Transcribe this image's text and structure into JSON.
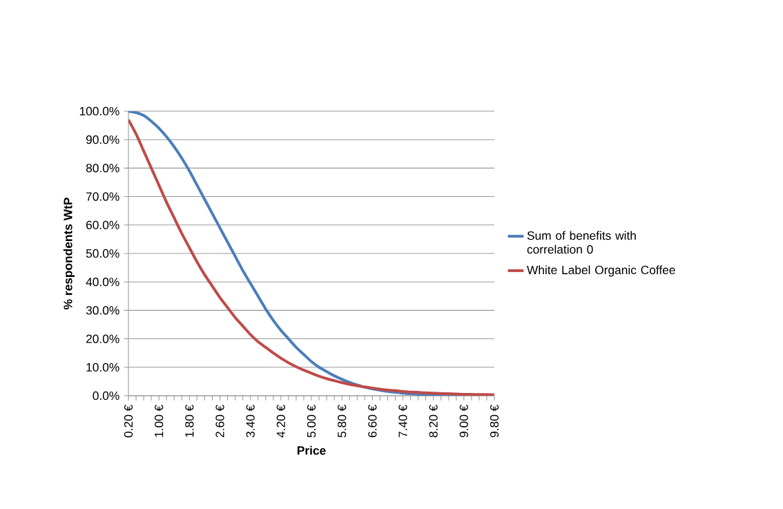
{
  "chart_data": {
    "type": "line",
    "xlabel": "Price",
    "ylabel": "% respondents WtP",
    "categories": [
      "0.20 €",
      null,
      null,
      null,
      "1.00 €",
      null,
      null,
      null,
      "1.80 €",
      null,
      null,
      null,
      "2.60 €",
      null,
      null,
      null,
      "3.40 €",
      null,
      null,
      null,
      "4.20 €",
      null,
      null,
      null,
      "5.00 €",
      null,
      null,
      null,
      "5.80 €",
      null,
      null,
      null,
      "6.60 €",
      null,
      null,
      null,
      "7.40 €",
      null,
      null,
      null,
      "8.20 €",
      null,
      null,
      null,
      "9.00 €",
      null,
      null,
      null,
      "9.80 €"
    ],
    "series": [
      {
        "name": "Sum of benefits with correlation 0",
        "color": "#4a7ebb",
        "values": [
          100,
          99.5,
          98.5,
          96.5,
          94,
          91,
          87.5,
          83.5,
          79,
          74,
          69,
          64,
          59,
          54,
          49,
          44,
          39.5,
          35,
          30.5,
          26.5,
          23,
          20,
          17,
          14.5,
          12,
          10,
          8.5,
          7,
          5.8,
          4.7,
          3.8,
          3,
          2.4,
          1.9,
          1.5,
          1.2,
          0.9,
          0.7,
          0.5,
          0.4,
          0.3,
          0.2,
          0.2,
          0.1,
          0.1,
          null,
          null,
          null,
          null
        ]
      },
      {
        "name": "White Label Organic Coffee",
        "color": "#be4b48",
        "values": [
          97,
          92,
          86,
          80,
          74,
          68,
          62.5,
          57,
          52,
          47,
          42.5,
          38.5,
          34.5,
          31,
          27.5,
          24.5,
          21.5,
          19,
          17,
          15,
          13.2,
          11.6,
          10.2,
          9,
          7.9,
          6.9,
          6,
          5.3,
          4.6,
          4,
          3.5,
          3.1,
          2.7,
          2.3,
          2,
          1.8,
          1.5,
          1.3,
          1.2,
          1,
          0.9,
          0.8,
          0.7,
          0.6,
          0.5,
          0.5,
          0.4,
          0.4,
          0.3
        ]
      }
    ],
    "ylim": [
      0,
      100
    ],
    "yticks": [
      {
        "value": 0,
        "label": "0.0%"
      },
      {
        "value": 10,
        "label": "10.0%"
      },
      {
        "value": 20,
        "label": "20.0%"
      },
      {
        "value": 30,
        "label": "30.0%"
      },
      {
        "value": 40,
        "label": "40.0%"
      },
      {
        "value": 50,
        "label": "50.0%"
      },
      {
        "value": 60,
        "label": "60.0%"
      },
      {
        "value": 70,
        "label": "70.0%"
      },
      {
        "value": 80,
        "label": "80.0%"
      },
      {
        "value": 90,
        "label": "90.0%"
      },
      {
        "value": 100,
        "label": "100.0%"
      }
    ],
    "grid": "y",
    "legend": "right",
    "marker": "none",
    "line_style": "solid"
  }
}
